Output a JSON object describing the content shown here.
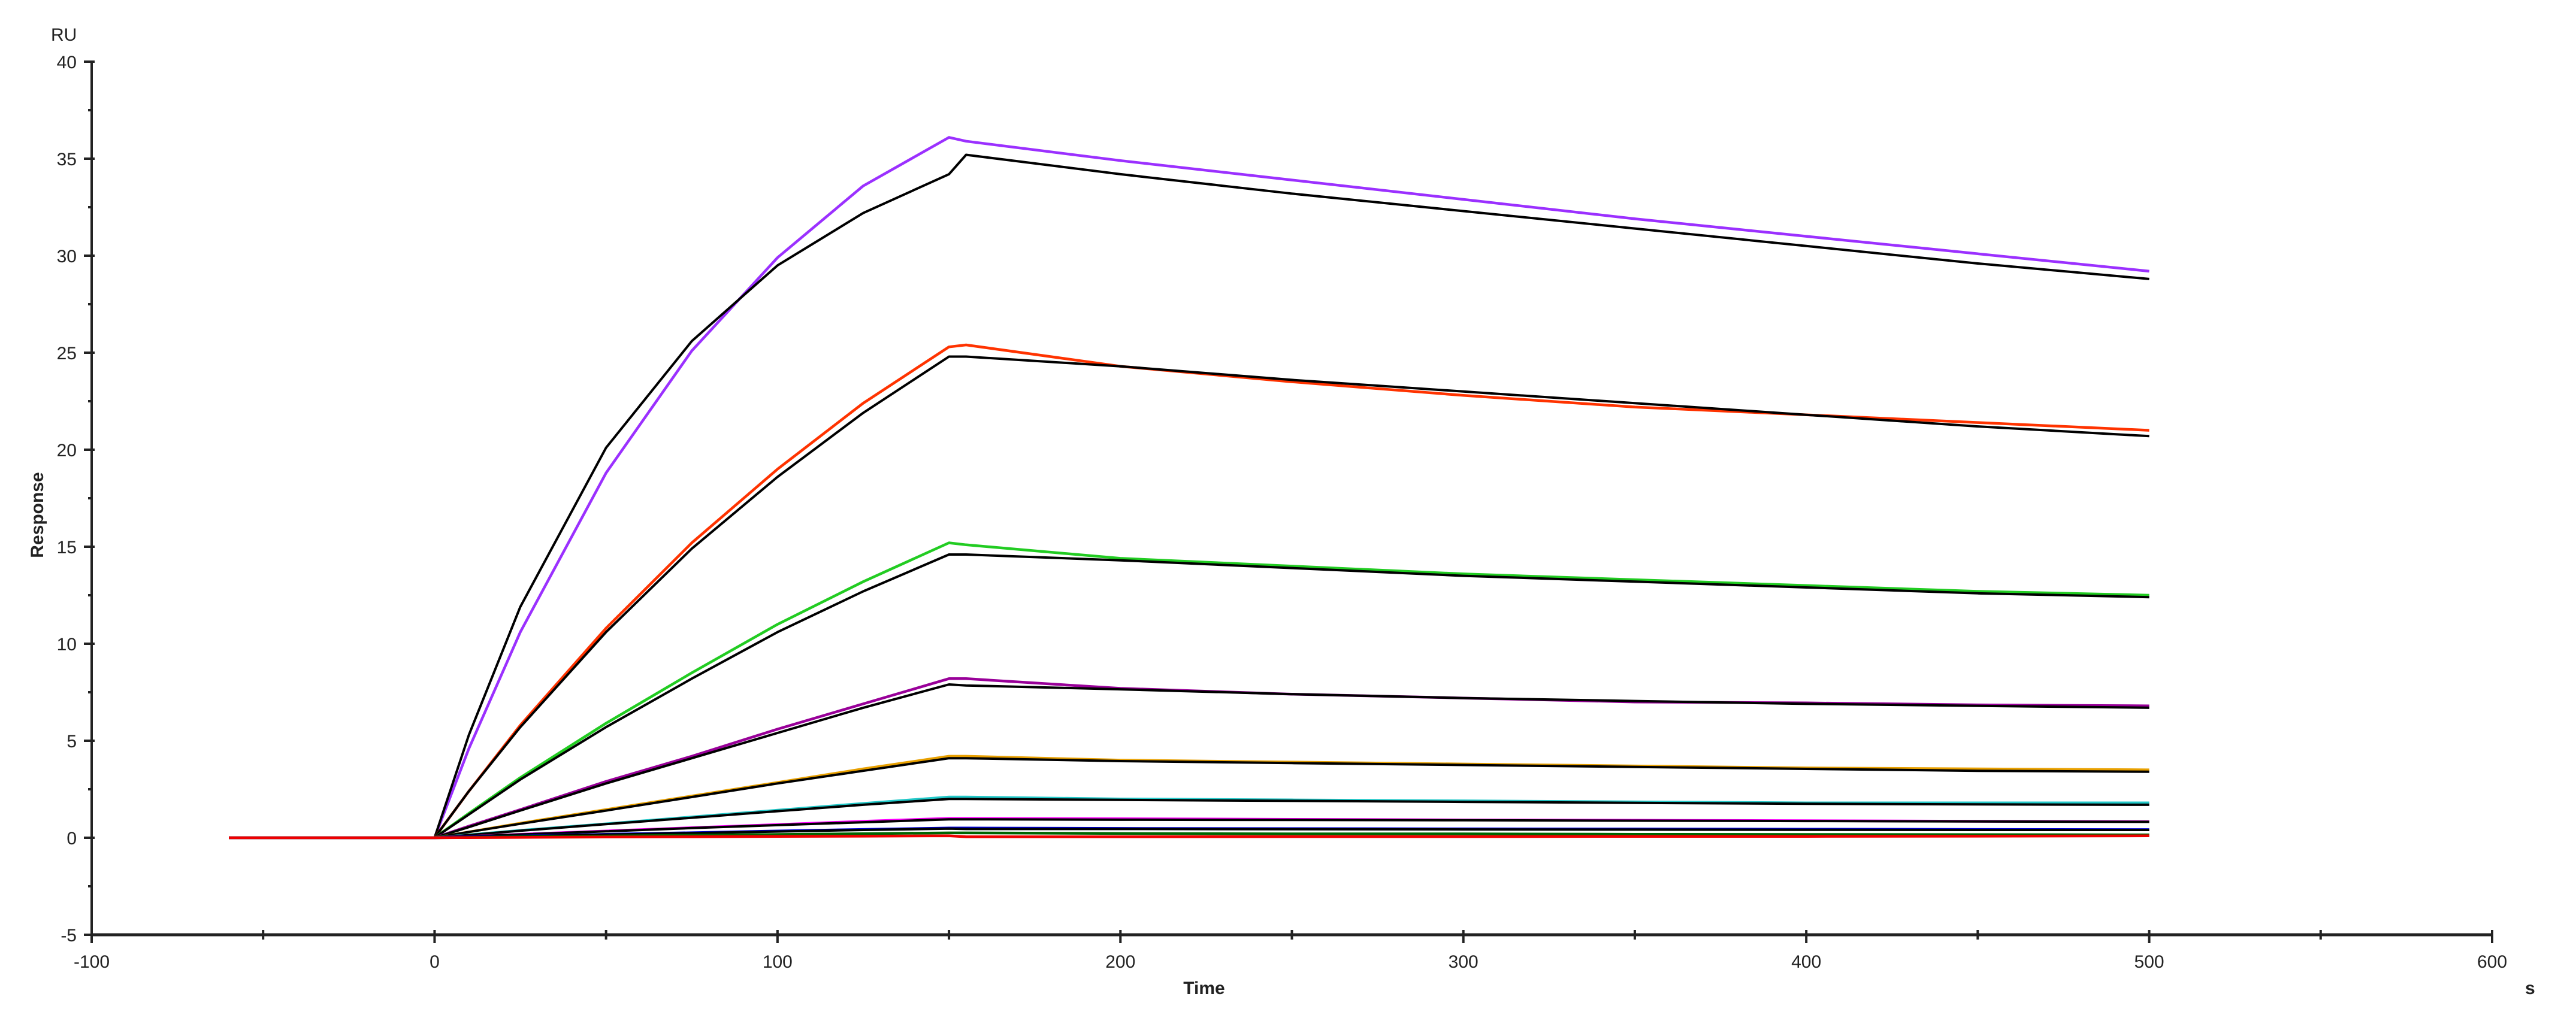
{
  "chart_data": {
    "type": "line",
    "title": "",
    "xlabel": "Time",
    "xunit": "s",
    "ylabel": "Response",
    "yunit": "RU",
    "xlim": [
      -100,
      600
    ],
    "ylim": [
      -5,
      40
    ],
    "x_ticks": [
      -100,
      0,
      100,
      200,
      300,
      400,
      500,
      600
    ],
    "y_ticks": [
      -5,
      0,
      5,
      10,
      15,
      20,
      25,
      30,
      35,
      40
    ],
    "grid": false,
    "legend": "none",
    "x": [
      -60,
      -30,
      0,
      10,
      25,
      50,
      75,
      100,
      125,
      150,
      155,
      200,
      250,
      300,
      350,
      400,
      450,
      500
    ],
    "series": [
      {
        "color": "#9b30ff",
        "values": [
          0,
          0,
          0,
          4.6,
          10.6,
          18.8,
          25.1,
          29.9,
          33.6,
          36.1,
          35.9,
          34.9,
          33.9,
          32.9,
          31.9,
          31.0,
          30.1,
          29.2
        ]
      },
      {
        "color": "#000000",
        "values": [
          null,
          null,
          0,
          5.3,
          11.9,
          20.1,
          25.6,
          29.5,
          32.2,
          34.2,
          35.2,
          34.2,
          33.2,
          32.3,
          31.4,
          30.5,
          29.6,
          28.8
        ]
      },
      {
        "color": "#ff3300",
        "values": [
          0,
          0,
          0,
          2.4,
          5.8,
          10.8,
          15.2,
          19.0,
          22.4,
          25.3,
          25.4,
          24.3,
          23.5,
          22.8,
          22.2,
          21.8,
          21.4,
          21.0
        ]
      },
      {
        "color": "#000000",
        "values": [
          null,
          null,
          0,
          2.4,
          5.7,
          10.6,
          14.9,
          18.6,
          21.9,
          24.8,
          24.8,
          24.3,
          23.6,
          23.0,
          22.4,
          21.8,
          21.2,
          20.7
        ]
      },
      {
        "color": "#22cc22",
        "values": [
          0,
          0,
          0,
          1.26,
          3.1,
          5.9,
          8.5,
          11.0,
          13.2,
          15.2,
          15.1,
          14.4,
          14.0,
          13.6,
          13.3,
          13.0,
          12.7,
          12.5
        ]
      },
      {
        "color": "#000000",
        "values": [
          null,
          null,
          0,
          1.2,
          3.0,
          5.7,
          8.2,
          10.6,
          12.7,
          14.6,
          14.6,
          14.3,
          13.9,
          13.5,
          13.2,
          12.9,
          12.6,
          12.4
        ]
      },
      {
        "color": "#990099",
        "values": [
          0,
          0,
          0,
          0.6,
          1.45,
          2.9,
          4.2,
          5.6,
          6.9,
          8.2,
          8.2,
          7.7,
          7.4,
          7.2,
          7.0,
          6.95,
          6.85,
          6.8
        ]
      },
      {
        "color": "#000000",
        "values": [
          null,
          null,
          0,
          0.55,
          1.4,
          2.8,
          4.1,
          5.4,
          6.7,
          7.9,
          7.85,
          7.65,
          7.4,
          7.2,
          7.05,
          6.9,
          6.8,
          6.7
        ]
      },
      {
        "color": "#e8a000",
        "values": [
          0,
          0,
          0,
          0.3,
          0.75,
          1.45,
          2.15,
          2.85,
          3.55,
          4.2,
          4.2,
          4.0,
          3.9,
          3.8,
          3.7,
          3.6,
          3.55,
          3.5
        ]
      },
      {
        "color": "#000000",
        "values": [
          null,
          null,
          0,
          0.3,
          0.72,
          1.4,
          2.1,
          2.8,
          3.45,
          4.1,
          4.1,
          3.95,
          3.85,
          3.75,
          3.65,
          3.55,
          3.45,
          3.4
        ]
      },
      {
        "color": "#22c8c8",
        "values": [
          0,
          0,
          0,
          0.15,
          0.38,
          0.72,
          1.07,
          1.42,
          1.77,
          2.1,
          2.1,
          2.0,
          1.95,
          1.9,
          1.85,
          1.8,
          1.8,
          1.8
        ]
      },
      {
        "color": "#000000",
        "values": [
          null,
          null,
          0,
          0.14,
          0.36,
          0.7,
          1.03,
          1.37,
          1.7,
          2.0,
          2.0,
          1.95,
          1.9,
          1.85,
          1.8,
          1.75,
          1.72,
          1.7
        ]
      },
      {
        "color": "#ff00ff",
        "values": [
          0,
          0,
          0,
          0.07,
          0.18,
          0.35,
          0.52,
          0.68,
          0.85,
          1.0,
          1.0,
          0.98,
          0.95,
          0.92,
          0.9,
          0.88,
          0.85,
          0.83
        ]
      },
      {
        "color": "#000000",
        "values": [
          null,
          null,
          0,
          0.07,
          0.17,
          0.33,
          0.5,
          0.65,
          0.8,
          0.95,
          0.95,
          0.93,
          0.92,
          0.9,
          0.88,
          0.86,
          0.84,
          0.82
        ]
      },
      {
        "color": "#0000dd",
        "values": [
          0,
          0,
          0,
          0.04,
          0.09,
          0.18,
          0.26,
          0.35,
          0.43,
          0.5,
          0.5,
          0.48,
          0.47,
          0.46,
          0.45,
          0.44,
          0.43,
          0.42
        ]
      },
      {
        "color": "#000000",
        "values": [
          null,
          null,
          0,
          0.03,
          0.08,
          0.16,
          0.24,
          0.32,
          0.4,
          0.47,
          0.45,
          0.45,
          0.44,
          0.43,
          0.42,
          0.41,
          0.4,
          0.4
        ]
      },
      {
        "color": "#006400",
        "values": [
          0,
          0,
          0,
          0.02,
          0.05,
          0.09,
          0.13,
          0.17,
          0.21,
          0.25,
          0.25,
          0.22,
          0.2,
          0.2,
          0.18,
          0.17,
          0.16,
          0.15
        ]
      },
      {
        "color": "#ee0000",
        "values": [
          0,
          0,
          0,
          0.01,
          0.02,
          0.04,
          0.05,
          0.07,
          0.08,
          0.1,
          0.05,
          0.05,
          0.06,
          0.06,
          0.07,
          0.07,
          0.08,
          0.1
        ]
      }
    ]
  }
}
